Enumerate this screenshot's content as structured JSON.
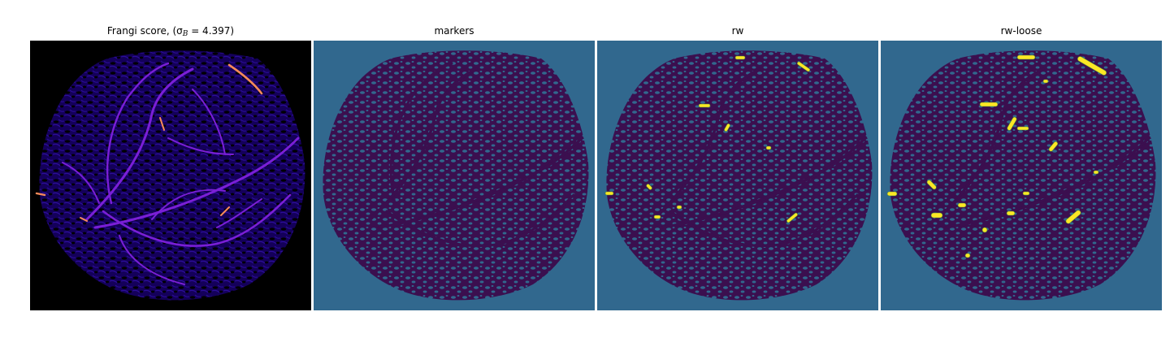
{
  "figure": {
    "panels": [
      {
        "title": "Frangi score, (σ",
        "title_sub": "B",
        "title_tail": " = 4.397)",
        "background": "#000000",
        "blob_fill": "#14005a",
        "blob_texture": "#2c0e9a",
        "vessel_color": "#7a1fd6",
        "vessel_highlight": "#f78a5a"
      },
      {
        "title": "markers",
        "background": "#31688e",
        "blob_fill": "#3b0f4f",
        "blob_texture": "#31688e"
      },
      {
        "title": "rw",
        "background": "#31688e",
        "blob_fill": "#3b0f4f",
        "blob_texture": "#31688e",
        "highlight": "#fde725"
      },
      {
        "title": "rw-loose",
        "background": "#31688e",
        "blob_fill": "#3b0f4f",
        "blob_texture": "#31688e",
        "highlight": "#fde725"
      }
    ]
  }
}
